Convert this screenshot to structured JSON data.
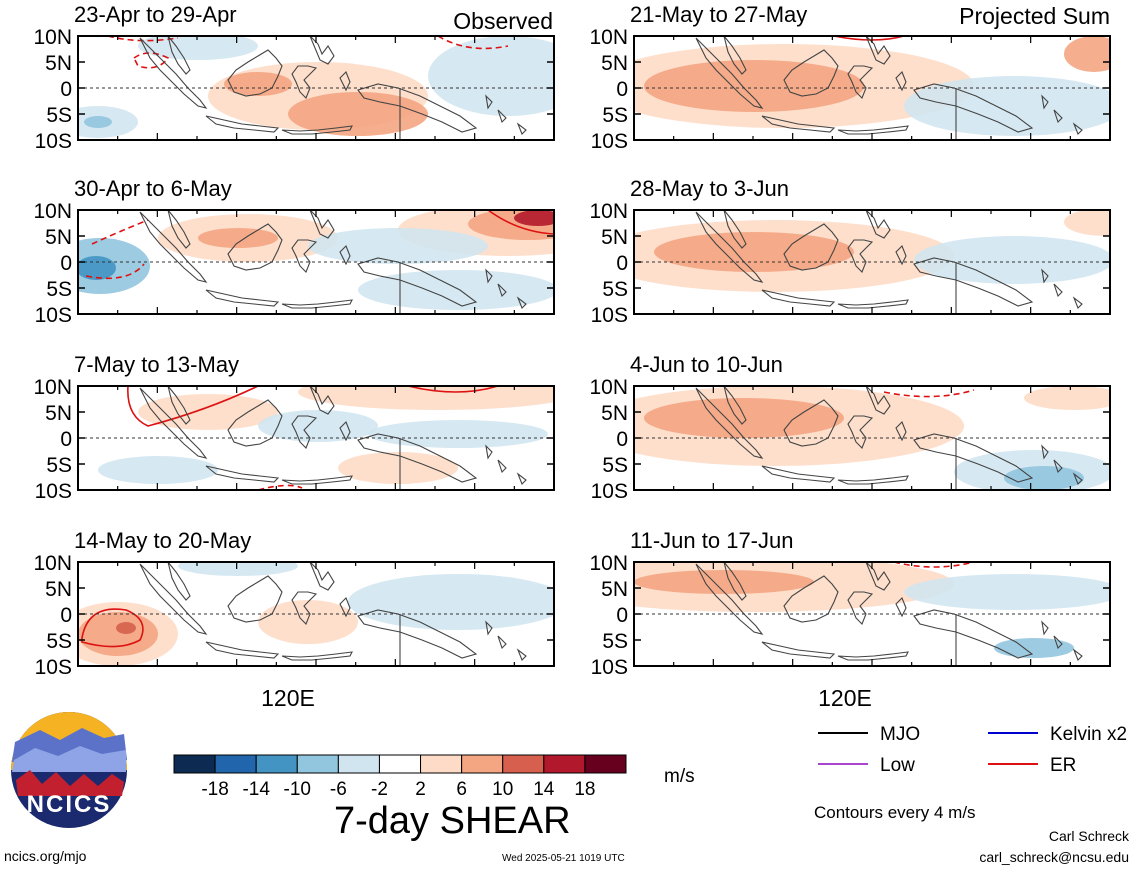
{
  "header": {
    "left_tag": "Observed",
    "right_tag": "Projected Sum"
  },
  "panels": [
    {
      "id": "p1",
      "title": "23-Apr to 29-Apr",
      "column": "left",
      "row": 0
    },
    {
      "id": "p2",
      "title": "30-Apr to 6-May",
      "column": "left",
      "row": 1
    },
    {
      "id": "p3",
      "title": "7-May to 13-May",
      "column": "left",
      "row": 2
    },
    {
      "id": "p4",
      "title": "14-May to 20-May",
      "column": "left",
      "row": 3
    },
    {
      "id": "p5",
      "title": "21-May to 27-May",
      "column": "right",
      "row": 0
    },
    {
      "id": "p6",
      "title": "28-May to 3-Jun",
      "column": "right",
      "row": 1
    },
    {
      "id": "p7",
      "title": "4-Jun to 10-Jun",
      "column": "right",
      "row": 2
    },
    {
      "id": "p8",
      "title": "11-Jun to 17-Jun",
      "column": "right",
      "row": 3
    }
  ],
  "chart_data": {
    "type": "heatmap",
    "title": "7-day SHEAR",
    "units": "m/s",
    "y_ticks": [
      "10N",
      "5N",
      "0",
      "5S",
      "10S"
    ],
    "x_tick_label": "120E",
    "colorbar": {
      "ticks": [
        "-18",
        "-14",
        "-10",
        "-6",
        "-2",
        "2",
        "6",
        "10",
        "14",
        "18"
      ],
      "colors": [
        "#0d2b52",
        "#2166ac",
        "#4393c3",
        "#92c5de",
        "#d1e5f0",
        "#ffffff",
        "#fddbc7",
        "#f4a582",
        "#d6604d",
        "#b2182b",
        "#67001f"
      ]
    },
    "contour_note": "Contours every 4 m/s",
    "legend": [
      {
        "label": "MJO",
        "color": "#000000"
      },
      {
        "label": "Kelvin x2",
        "color": "#0000cc"
      },
      {
        "label": "Low",
        "color": "#aa44cc"
      },
      {
        "label": "ER",
        "color": "#dd1111"
      }
    ]
  },
  "logo": {
    "text": "NCICS"
  },
  "footer": {
    "url": "ncics.org/mjo",
    "timestamp": "Wed 2025-05-21 1019 UTC",
    "author": "Carl Schreck",
    "email": "carl_schreck@ncsu.edu"
  }
}
